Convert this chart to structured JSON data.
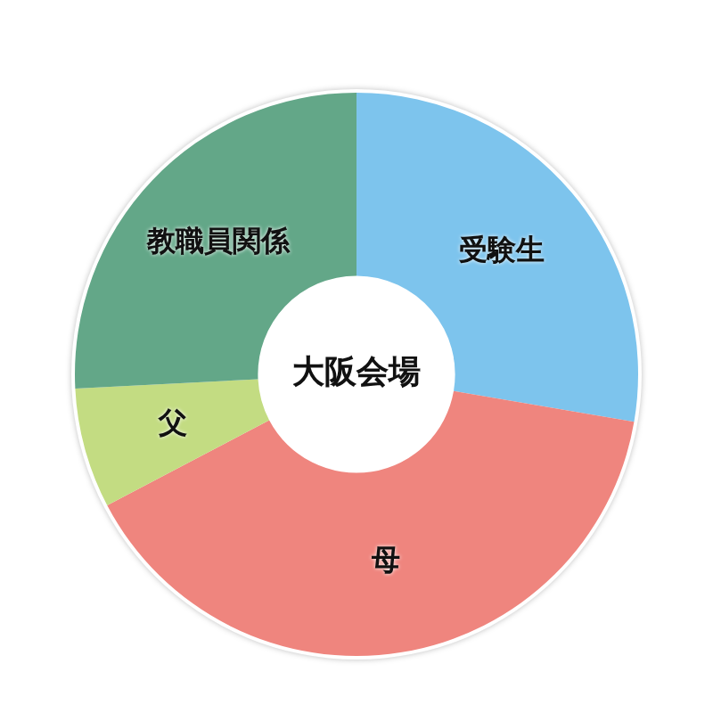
{
  "chart_data": {
    "type": "donut",
    "title": "大阪会場",
    "categories": [
      "受験生",
      "母",
      "父",
      "教職員関係"
    ],
    "values": [
      27.7,
      39.6,
      6.9,
      25.8
    ],
    "colors": [
      "#7dc4ed",
      "#ef857e",
      "#c3dc82",
      "#63a788"
    ],
    "legend": false
  }
}
